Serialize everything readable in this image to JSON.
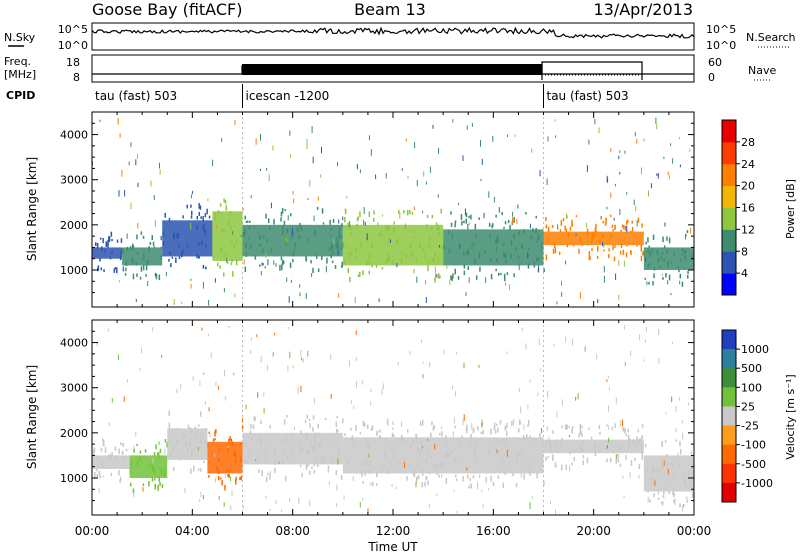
{
  "header": {
    "station": "Goose Bay (fitACF)",
    "beam": "Beam 13",
    "date": "13/Apr/2013"
  },
  "noise_panel": {
    "left_label": "N.Sky",
    "right_label": "N.Search",
    "left_ticks": [
      "10^5",
      "10^0"
    ],
    "right_ticks": [
      "10^5",
      "10^0"
    ]
  },
  "freq_panel": {
    "label_line1": "Freq.",
    "label_line2": "[MHz]",
    "right_label": "Nave",
    "left_ticks": [
      "18",
      "8"
    ],
    "right_ticks": [
      "60",
      "0"
    ]
  },
  "cpid": {
    "label": "CPID",
    "segments": [
      {
        "text": "tau (fast) 503",
        "start_h": 0,
        "end_h": 6
      },
      {
        "text": "icescan -1200",
        "start_h": 6,
        "end_h": 18
      },
      {
        "text": "tau (fast) 503",
        "start_h": 18,
        "end_h": 24
      }
    ]
  },
  "axes": {
    "x_label": "Time UT",
    "x_ticks": [
      "00:00",
      "04:00",
      "08:00",
      "12:00",
      "16:00",
      "20:00",
      "00:00"
    ],
    "y_label": "Slant Range [km]",
    "y_ticks": [
      "1000",
      "2000",
      "3000",
      "4000"
    ]
  },
  "power_colorbar": {
    "label": "Power [dB]",
    "ticks": [
      "4",
      "8",
      "12",
      "16",
      "20",
      "24",
      "28"
    ],
    "colors": [
      "#0000ff",
      "#2b55b0",
      "#3d8c6e",
      "#8dc63f",
      "#f2b705",
      "#ff7f00",
      "#ff3d00",
      "#e80000"
    ]
  },
  "velocity_colorbar": {
    "label": "Velocity [m s⁻¹]",
    "ticks": [
      "1000",
      "500",
      "100",
      "25",
      "-25",
      "-100",
      "-500",
      "-1000"
    ],
    "colors": [
      "#1f3fbf",
      "#2d7fa0",
      "#3b8f3b",
      "#71c23a",
      "#c8c8c8",
      "#ff9e1a",
      "#ff6a00",
      "#ff3300",
      "#e00000"
    ]
  },
  "chart_data": [
    {
      "type": "heatmap",
      "title": "Power",
      "xlabel": "Time UT",
      "ylabel": "Slant Range [km]",
      "xlim": [
        0,
        24
      ],
      "ylim": [
        180,
        4500
      ],
      "bands": [
        {
          "start_h": 0.0,
          "end_h": 1.2,
          "low_km": 1250,
          "high_km": 1500,
          "color": "#2b55b0"
        },
        {
          "start_h": 1.2,
          "end_h": 2.8,
          "low_km": 1100,
          "high_km": 1500,
          "color": "#3d8c6e"
        },
        {
          "start_h": 2.8,
          "end_h": 4.8,
          "low_km": 1300,
          "high_km": 2100,
          "color": "#2b55b0"
        },
        {
          "start_h": 4.8,
          "end_h": 6.0,
          "low_km": 1200,
          "high_km": 2300,
          "color": "#8dc63f"
        },
        {
          "start_h": 6.0,
          "end_h": 10.0,
          "low_km": 1300,
          "high_km": 2000,
          "color": "#3d8c6e"
        },
        {
          "start_h": 10.0,
          "end_h": 14.0,
          "low_km": 1100,
          "high_km": 2000,
          "color": "#8dc63f"
        },
        {
          "start_h": 14.0,
          "end_h": 18.0,
          "low_km": 1100,
          "high_km": 1900,
          "color": "#3d8c6e"
        },
        {
          "start_h": 18.0,
          "end_h": 22.0,
          "low_km": 1550,
          "high_km": 1850,
          "color": "#ff7f00"
        },
        {
          "start_h": 22.0,
          "end_h": 24.0,
          "low_km": 1000,
          "high_km": 1500,
          "color": "#3d8c6e"
        }
      ]
    },
    {
      "type": "heatmap",
      "title": "Velocity",
      "xlabel": "Time UT",
      "ylabel": "Slant Range [km]",
      "xlim": [
        0,
        24
      ],
      "ylim": [
        180,
        4500
      ],
      "bands": [
        {
          "start_h": 0.0,
          "end_h": 1.5,
          "low_km": 1200,
          "high_km": 1500,
          "color": "#c8c8c8"
        },
        {
          "start_h": 1.5,
          "end_h": 3.0,
          "low_km": 1000,
          "high_km": 1500,
          "color": "#71c23a"
        },
        {
          "start_h": 3.0,
          "end_h": 4.6,
          "low_km": 1400,
          "high_km": 2100,
          "color": "#c8c8c8"
        },
        {
          "start_h": 4.6,
          "end_h": 6.0,
          "low_km": 1100,
          "high_km": 1800,
          "color": "#ff6a00"
        },
        {
          "start_h": 6.0,
          "end_h": 10.0,
          "low_km": 1300,
          "high_km": 2000,
          "color": "#c8c8c8"
        },
        {
          "start_h": 10.0,
          "end_h": 18.0,
          "low_km": 1100,
          "high_km": 1900,
          "color": "#c8c8c8"
        },
        {
          "start_h": 18.0,
          "end_h": 22.0,
          "low_km": 1550,
          "high_km": 1850,
          "color": "#c8c8c8"
        },
        {
          "start_h": 22.0,
          "end_h": 24.0,
          "low_km": 700,
          "high_km": 1500,
          "color": "#c8c8c8"
        }
      ]
    }
  ]
}
